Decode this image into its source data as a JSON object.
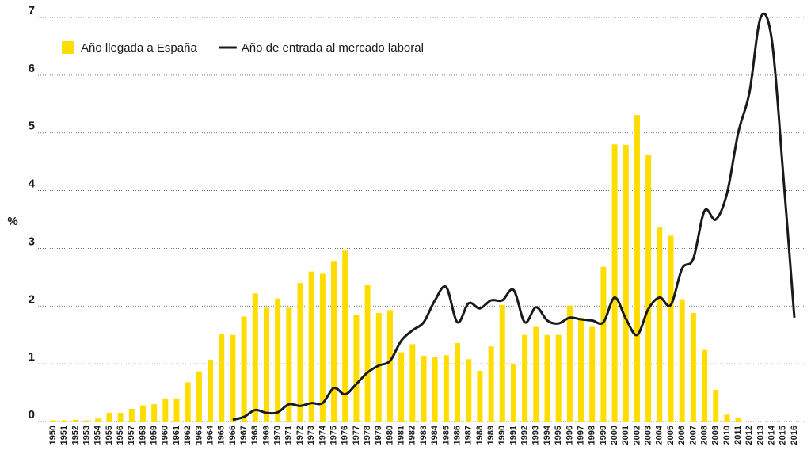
{
  "chart_data": {
    "type": "bar",
    "ylabel": "%",
    "categories": [
      "1950",
      "1951",
      "1952",
      "1953",
      "1954",
      "1955",
      "1956",
      "1957",
      "1958",
      "1959",
      "1960",
      "1961",
      "1962",
      "1963",
      "1964",
      "1965",
      "1966",
      "1967",
      "1968",
      "1969",
      "1970",
      "1971",
      "1972",
      "1973",
      "1974",
      "1975",
      "1976",
      "1977",
      "1978",
      "1979",
      "1980",
      "1981",
      "1982",
      "1983",
      "1984",
      "1985",
      "1986",
      "1987",
      "1988",
      "1989",
      "1990",
      "1991",
      "1992",
      "1993",
      "1994",
      "1995",
      "1996",
      "1997",
      "1998",
      "1999",
      "2000",
      "2001",
      "2002",
      "2003",
      "2004",
      "2005",
      "2006",
      "2007",
      "2008",
      "2009",
      "2010",
      "2011",
      "2012",
      "2013",
      "2014",
      "2015",
      "2016"
    ],
    "series": [
      {
        "name": "Año llegada a España",
        "type": "bar",
        "color": "#ffdd00",
        "values": [
          0.02,
          0.02,
          0.03,
          0.02,
          0.05,
          0.15,
          0.15,
          0.22,
          0.28,
          0.3,
          0.4,
          0.4,
          0.68,
          0.87,
          1.07,
          1.52,
          1.5,
          1.82,
          2.22,
          1.97,
          2.13,
          1.97,
          2.4,
          2.6,
          2.56,
          2.77,
          2.96,
          1.84,
          2.36,
          1.88,
          1.93,
          1.2,
          1.34,
          1.14,
          1.12,
          1.15,
          1.36,
          1.08,
          0.88,
          1.3,
          2.02,
          1.0,
          1.5,
          1.64,
          1.5,
          1.5,
          2.01,
          1.8,
          1.64,
          2.68,
          4.8,
          4.79,
          5.31,
          4.62,
          3.36,
          3.22,
          2.12,
          1.88,
          1.24,
          0.55,
          0.12,
          0.07,
          null,
          null,
          null,
          null,
          null
        ]
      },
      {
        "name": "Año de entrada al mercado laboral",
        "type": "line",
        "color": "#1a1a1a",
        "values": [
          null,
          null,
          null,
          null,
          null,
          null,
          null,
          null,
          null,
          null,
          null,
          null,
          null,
          null,
          null,
          null,
          0.03,
          0.08,
          0.2,
          0.15,
          0.16,
          0.3,
          0.27,
          0.32,
          0.32,
          0.58,
          0.47,
          0.65,
          0.85,
          0.97,
          1.05,
          1.4,
          1.58,
          1.72,
          2.1,
          2.33,
          1.72,
          2.05,
          1.96,
          2.1,
          2.1,
          2.28,
          1.72,
          1.98,
          1.75,
          1.7,
          1.8,
          1.77,
          1.75,
          1.72,
          2.15,
          1.78,
          1.5,
          1.95,
          2.15,
          2.02,
          2.65,
          2.82,
          3.65,
          3.5,
          3.95,
          5.0,
          5.7,
          7.0,
          6.6,
          4.3,
          1.8
        ]
      }
    ],
    "ylim": [
      0,
      7
    ],
    "yticks": [
      0,
      1,
      2,
      3,
      4,
      5,
      6,
      7
    ],
    "grid": true,
    "legend": "top-left"
  }
}
